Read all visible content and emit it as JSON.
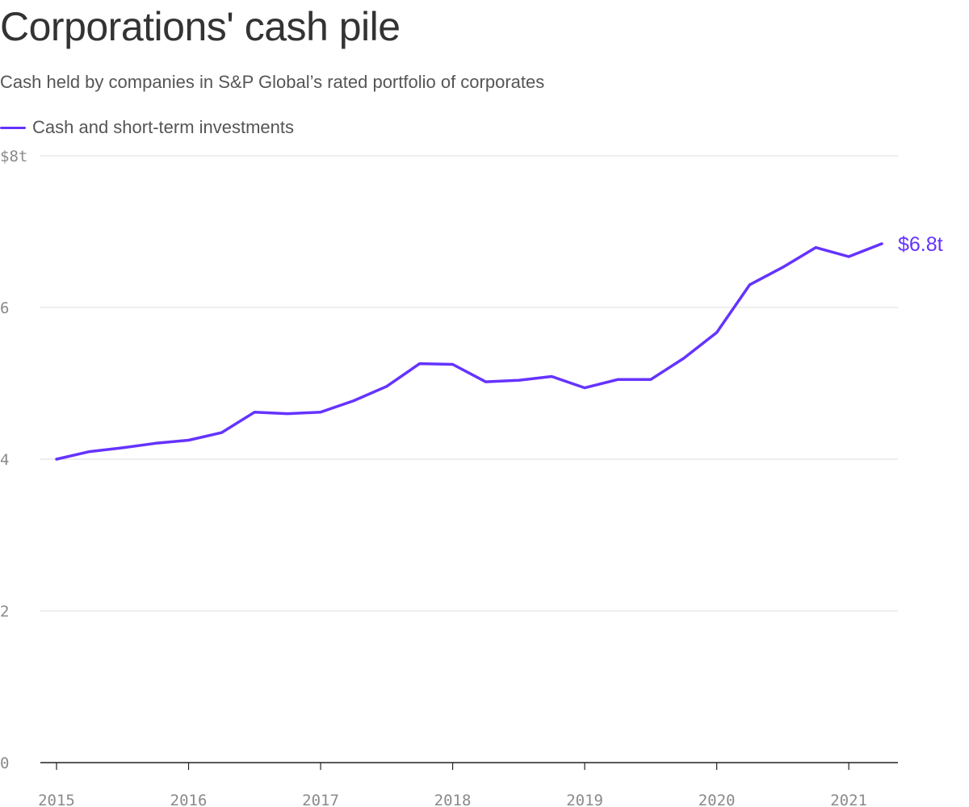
{
  "title": "Corporations' cash pile",
  "subtitle": "Cash held by companies in S&P Global’s rated portfolio of corporates",
  "colors": {
    "series": "#6533ff",
    "grid": "#dddddd",
    "baseline": "#222222",
    "tick_text": "#8a8a8a",
    "title_text": "#333333",
    "subtitle_text": "#555555"
  },
  "chart_data": {
    "type": "line",
    "title": "Corporations' cash pile",
    "subtitle": "Cash held by companies in S&P Global’s rated portfolio of corporates",
    "xlabel": "",
    "ylabel": "",
    "legend_position": "top-left",
    "grid": true,
    "xlim": [
      2015.0,
      2021.25
    ],
    "ylim": [
      0,
      8
    ],
    "x_ticks": [
      2015,
      2016,
      2017,
      2018,
      2019,
      2020,
      2021
    ],
    "x_tick_labels": [
      "2015",
      "2016",
      "2017",
      "2018",
      "2019",
      "2020",
      "2021"
    ],
    "y_ticks": [
      0,
      2,
      4,
      6,
      8
    ],
    "y_tick_labels": [
      "0",
      "2",
      "4",
      "6",
      "$8t"
    ],
    "end_label": "$6.8t",
    "series": [
      {
        "name": "Cash and short-term investments",
        "x": [
          2015.0,
          2015.25,
          2015.5,
          2015.75,
          2016.0,
          2016.25,
          2016.5,
          2016.75,
          2017.0,
          2017.25,
          2017.5,
          2017.75,
          2018.0,
          2018.25,
          2018.5,
          2018.75,
          2019.0,
          2019.25,
          2019.5,
          2019.75,
          2020.0,
          2020.25,
          2020.5,
          2020.75,
          2021.0,
          2021.25
        ],
        "values": [
          4.0,
          4.1,
          4.15,
          4.21,
          4.25,
          4.35,
          4.62,
          4.6,
          4.62,
          4.77,
          4.96,
          5.26,
          5.25,
          5.02,
          5.04,
          5.09,
          4.94,
          5.05,
          5.05,
          5.33,
          5.67,
          6.3,
          6.53,
          6.79,
          6.67,
          6.84
        ]
      }
    ]
  }
}
